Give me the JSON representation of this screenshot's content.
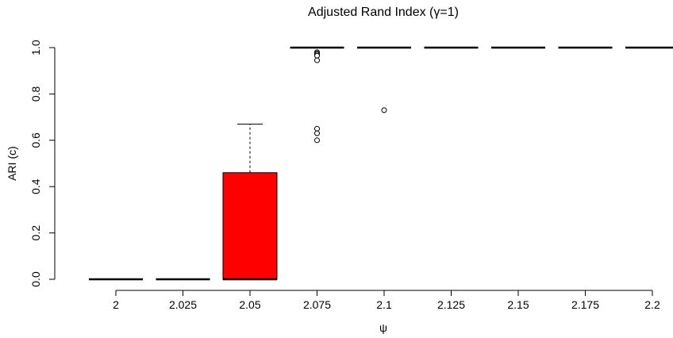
{
  "chart_data": {
    "type": "boxplot",
    "title": "Adjusted Rand Index (γ=1)",
    "xlabel": "ψ",
    "ylabel": "ARI (c)",
    "ylim": [
      0,
      1
    ],
    "y_ticks": [
      "0.0",
      "0.2",
      "0.4",
      "0.6",
      "0.8",
      "1.0"
    ],
    "y_tick_values": [
      0,
      0.2,
      0.4,
      0.6,
      0.8,
      1.0
    ],
    "categories": [
      "2",
      "2.025",
      "2.05",
      "2.075",
      "2.1",
      "2.125",
      "2.15",
      "2.175",
      "2.2"
    ],
    "boxes": [
      {
        "min": 0,
        "q1": 0,
        "median": 0,
        "q3": 0,
        "max": 0,
        "outliers": []
      },
      {
        "min": 0,
        "q1": 0,
        "median": 0,
        "q3": 0,
        "max": 0,
        "outliers": []
      },
      {
        "min": 0,
        "q1": 0,
        "median": 0,
        "q3": 0.46,
        "max": 0.67,
        "outliers": []
      },
      {
        "min": 1,
        "q1": 1,
        "median": 1,
        "q3": 1,
        "max": 1,
        "outliers": [
          0.98,
          0.975,
          0.97,
          0.965,
          0.945,
          0.65,
          0.63,
          0.6
        ]
      },
      {
        "min": 1,
        "q1": 1,
        "median": 1,
        "q3": 1,
        "max": 1,
        "outliers": [
          0.73
        ]
      },
      {
        "min": 1,
        "q1": 1,
        "median": 1,
        "q3": 1,
        "max": 1,
        "outliers": []
      },
      {
        "min": 1,
        "q1": 1,
        "median": 1,
        "q3": 1,
        "max": 1,
        "outliers": []
      },
      {
        "min": 1,
        "q1": 1,
        "median": 1,
        "q3": 1,
        "max": 1,
        "outliers": []
      },
      {
        "min": 1,
        "q1": 1,
        "median": 1,
        "q3": 1,
        "max": 1,
        "outliers": []
      }
    ],
    "box_fill": "#ff0000",
    "grid": false,
    "legend": "none"
  }
}
